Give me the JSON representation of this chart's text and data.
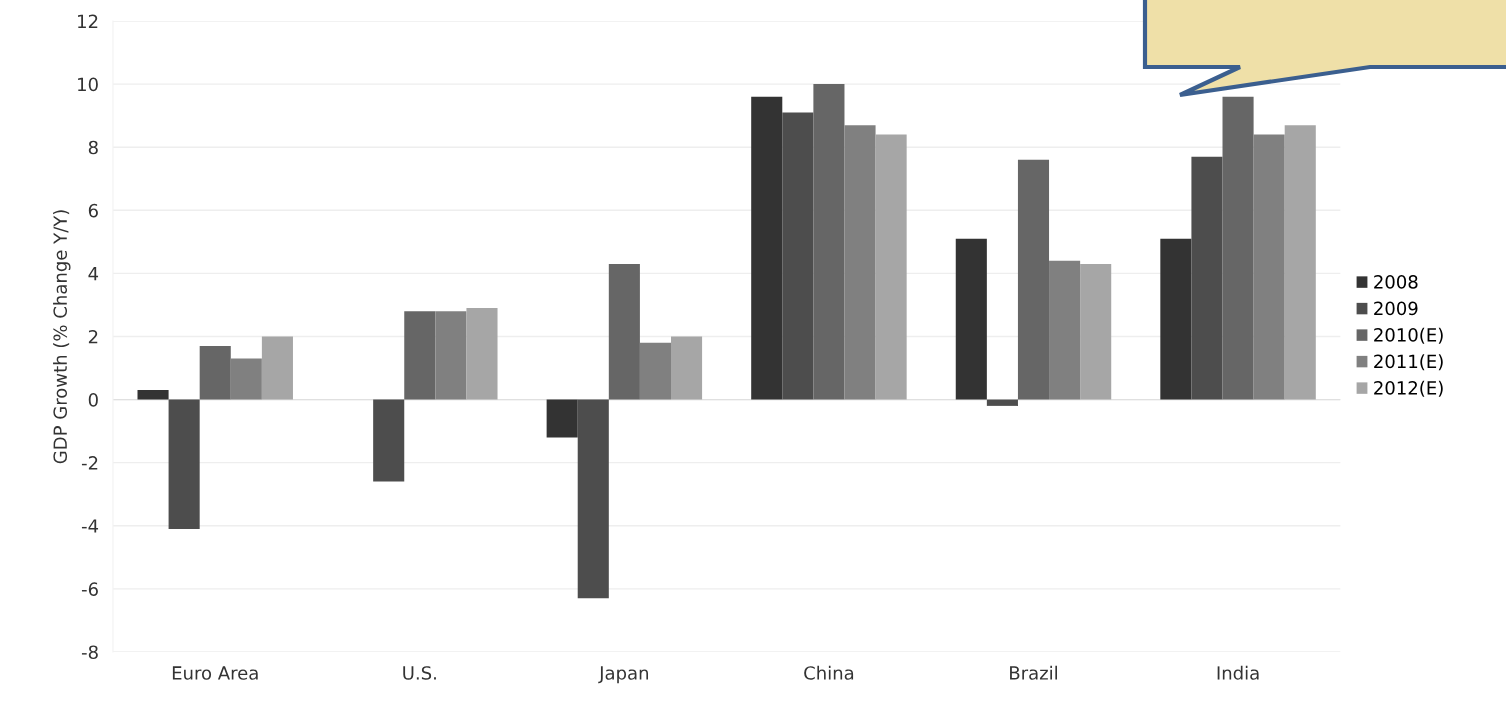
{
  "chart_data": {
    "type": "bar",
    "ylabel": "GDP Growth (% Change Y/Y)",
    "categories": [
      "Euro Area",
      "U.S.",
      "Japan",
      "China",
      "Brazil",
      "India"
    ],
    "series": [
      {
        "name": "2008",
        "color": "#333333",
        "values": [
          0.3,
          0,
          -1.2,
          9.6,
          5.1,
          5.1
        ]
      },
      {
        "name": "2009",
        "color": "#4d4d4d",
        "values": [
          -4.1,
          -2.6,
          -6.3,
          9.1,
          -0.2,
          7.7
        ]
      },
      {
        "name": "2010(E)",
        "color": "#666666",
        "values": [
          1.7,
          2.8,
          4.3,
          10.0,
          7.6,
          9.6
        ]
      },
      {
        "name": "2011(E)",
        "color": "#808080",
        "values": [
          1.3,
          2.8,
          1.8,
          8.7,
          4.4,
          8.4
        ]
      },
      {
        "name": "2012(E)",
        "color": "#a6a6a6",
        "values": [
          2.0,
          2.9,
          2.0,
          8.4,
          4.3,
          8.7
        ]
      }
    ],
    "ylim": [
      -8,
      12
    ],
    "yticks": [
      -8,
      -6,
      -4,
      -2,
      0,
      2,
      4,
      6,
      8,
      10,
      12
    ],
    "grid": "y",
    "legend": "right"
  }
}
